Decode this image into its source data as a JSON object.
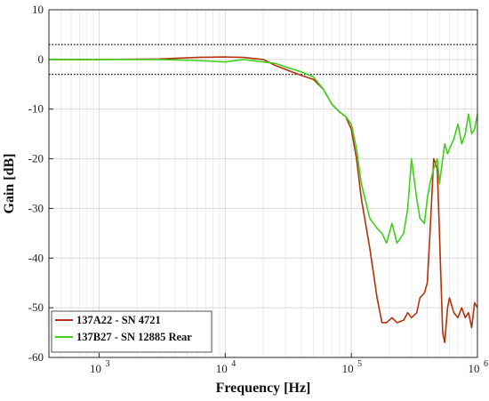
{
  "chart_data": {
    "type": "line",
    "xlabel": "Frequency [Hz]",
    "ylabel": "Gain [dB]",
    "x_scale": "log",
    "xlim": [
      400,
      1000000
    ],
    "ylim": [
      -60,
      10
    ],
    "grid": true,
    "x_ticks": [
      {
        "value": 1000,
        "base": "10",
        "exp": "3"
      },
      {
        "value": 10000,
        "base": "10",
        "exp": "4"
      },
      {
        "value": 100000,
        "base": "10",
        "exp": "5"
      },
      {
        "value": 1000000,
        "base": "10",
        "exp": "6"
      }
    ],
    "y_ticks": [
      {
        "value": 10,
        "label": "10"
      },
      {
        "value": 0,
        "label": "0"
      },
      {
        "value": -10,
        "label": "-10"
      },
      {
        "value": -20,
        "label": "-20"
      },
      {
        "value": -30,
        "label": "-30"
      },
      {
        "value": -40,
        "label": "-40"
      },
      {
        "value": -50,
        "label": "-50"
      },
      {
        "value": -60,
        "label": "-60"
      }
    ],
    "reference_lines": [
      {
        "y": 3,
        "style": "dotted",
        "color": "#000000"
      },
      {
        "y": -3,
        "style": "dotted",
        "color": "#000000"
      }
    ],
    "legend_position": "bottom-left",
    "series": [
      {
        "name": "137A22 - SN 4721",
        "color": "#b5300b",
        "x": [
          400,
          1000,
          3000,
          6000,
          10000,
          14000,
          20000,
          25000,
          30000,
          40000,
          50000,
          60000,
          70000,
          80000,
          90000,
          100000,
          110000,
          120000,
          140000,
          160000,
          175000,
          190000,
          210000,
          230000,
          260000,
          280000,
          300000,
          330000,
          350000,
          380000,
          400000,
          420000,
          450000,
          480000,
          500000,
          530000,
          550000,
          580000,
          600000,
          650000,
          700000,
          750000,
          800000,
          850000,
          900000,
          950000,
          1000000
        ],
        "y": [
          0,
          0,
          0.1,
          0.4,
          0.5,
          0.4,
          0,
          -1.2,
          -2,
          -3.2,
          -4,
          -6,
          -9,
          -10.5,
          -11.5,
          -14,
          -20,
          -28,
          -38,
          -48,
          -53,
          -53,
          -52,
          -53,
          -52.5,
          -51,
          -52,
          -51,
          -48,
          -47,
          -45,
          -35,
          -20,
          -22,
          -35,
          -55,
          -57,
          -50,
          -48,
          -51,
          -52,
          -50,
          -52,
          -51,
          -54,
          -49,
          -50
        ]
      },
      {
        "name": "137B27 - SN 12885 Rear",
        "color": "#3fd11a",
        "x": [
          400,
          1000,
          3000,
          6000,
          10000,
          14000,
          20000,
          25000,
          30000,
          40000,
          50000,
          60000,
          70000,
          80000,
          90000,
          100000,
          110000,
          120000,
          140000,
          160000,
          175000,
          190000,
          210000,
          230000,
          260000,
          280000,
          300000,
          330000,
          350000,
          380000,
          400000,
          420000,
          450000,
          480000,
          500000,
          530000,
          550000,
          580000,
          600000,
          650000,
          700000,
          750000,
          800000,
          850000,
          900000,
          950000,
          1000000
        ],
        "y": [
          0,
          0,
          0,
          -0.2,
          -0.5,
          0,
          -0.5,
          -0.8,
          -1.5,
          -2.5,
          -3.5,
          -6,
          -9,
          -10.5,
          -11.5,
          -13,
          -18,
          -25,
          -32,
          -34,
          -35,
          -37,
          -33,
          -37,
          -35,
          -30,
          -20,
          -28,
          -32,
          -33,
          -28,
          -25,
          -22,
          -20,
          -25,
          -20,
          -17,
          -19,
          -18,
          -16,
          -13,
          -17,
          -15,
          -11,
          -15,
          -14,
          -11
        ]
      }
    ]
  }
}
